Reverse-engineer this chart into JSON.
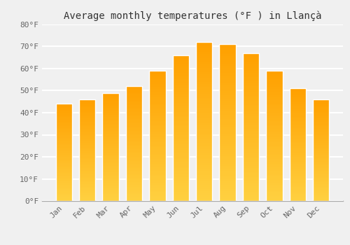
{
  "months": [
    "Jan",
    "Feb",
    "Mar",
    "Apr",
    "May",
    "Jun",
    "Jul",
    "Aug",
    "Sep",
    "Oct",
    "Nov",
    "Dec"
  ],
  "values": [
    44,
    46,
    49,
    52,
    59,
    66,
    72,
    71,
    67,
    59,
    51,
    46
  ],
  "bar_color_main": "#FFA800",
  "bar_color_bright": "#FFD040",
  "bar_edge_color": "white",
  "title": "Average monthly temperatures (°F ) in Llançà",
  "ylim": [
    0,
    80
  ],
  "yticks": [
    0,
    10,
    20,
    30,
    40,
    50,
    60,
    70,
    80
  ],
  "background_color": "#f0f0f0",
  "plot_bg_color": "#f0f0f0",
  "grid_color": "white",
  "title_fontsize": 10,
  "tick_fontsize": 8,
  "bar_width": 0.7,
  "tick_color": "#666666",
  "spine_color": "#aaaaaa"
}
